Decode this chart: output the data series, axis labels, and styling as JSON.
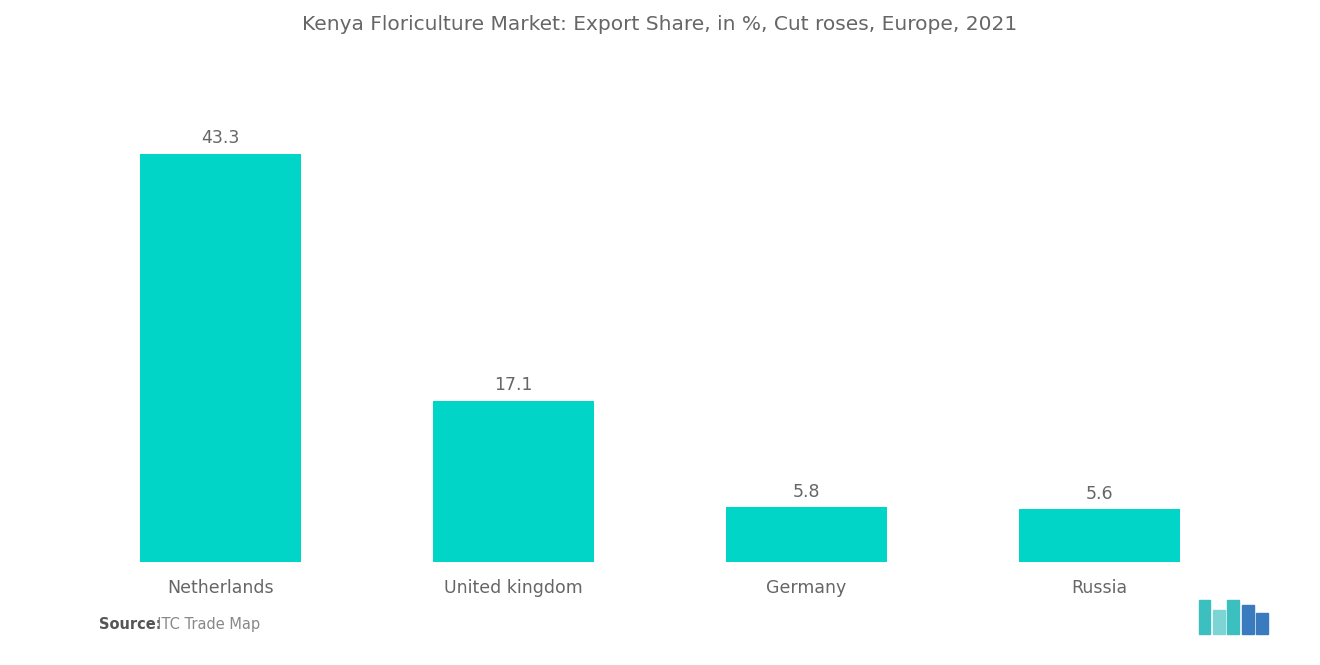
{
  "title": "Kenya Floriculture Market: Export Share, in %, Cut roses, Europe, 2021",
  "categories": [
    "Netherlands",
    "United kingdom",
    "Germany",
    "Russia"
  ],
  "values": [
    43.3,
    17.1,
    5.8,
    5.6
  ],
  "bar_color": "#00D5C8",
  "background_color": "#ffffff",
  "title_fontsize": 14.5,
  "label_fontsize": 12.5,
  "value_fontsize": 12.5,
  "source_bold": "Source:",
  "source_normal": "  ITC Trade Map",
  "ylim": [
    0,
    52
  ],
  "bar_width": 0.55,
  "text_color": "#666666"
}
